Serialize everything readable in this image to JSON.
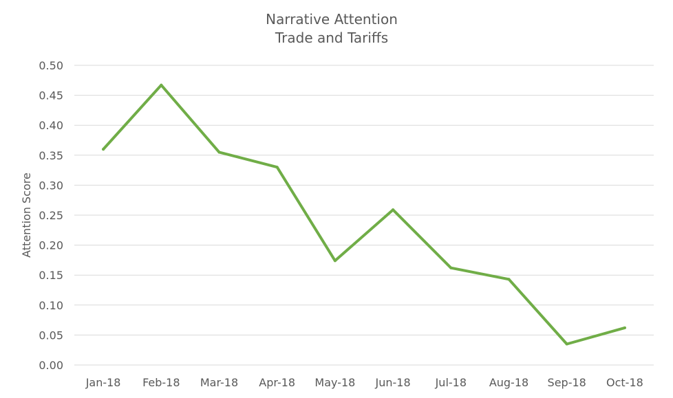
{
  "chart_data": {
    "type": "line",
    "title": "Narrative Attention",
    "subtitle": "Trade and Tariffs",
    "xlabel": "",
    "ylabel": "Attention Score",
    "categories": [
      "Jan-18",
      "Feb-18",
      "Mar-18",
      "Apr-18",
      "May-18",
      "Jun-18",
      "Jul-18",
      "Aug-18",
      "Sep-18",
      "Oct-18"
    ],
    "series": [
      {
        "values": [
          0.36,
          0.467,
          0.355,
          0.33,
          0.174,
          0.259,
          0.162,
          0.143,
          0.035,
          0.062
        ],
        "color": "#70ad47"
      }
    ],
    "ylim": [
      0,
      0.5
    ],
    "yticks": [
      "0.00",
      "0.05",
      "0.10",
      "0.15",
      "0.20",
      "0.25",
      "0.30",
      "0.35",
      "0.40",
      "0.45",
      "0.50"
    ],
    "grid": true,
    "legend": "none",
    "colors": {
      "grid": "#d9d9d9",
      "text": "#595959",
      "line": "#70ad47"
    }
  }
}
